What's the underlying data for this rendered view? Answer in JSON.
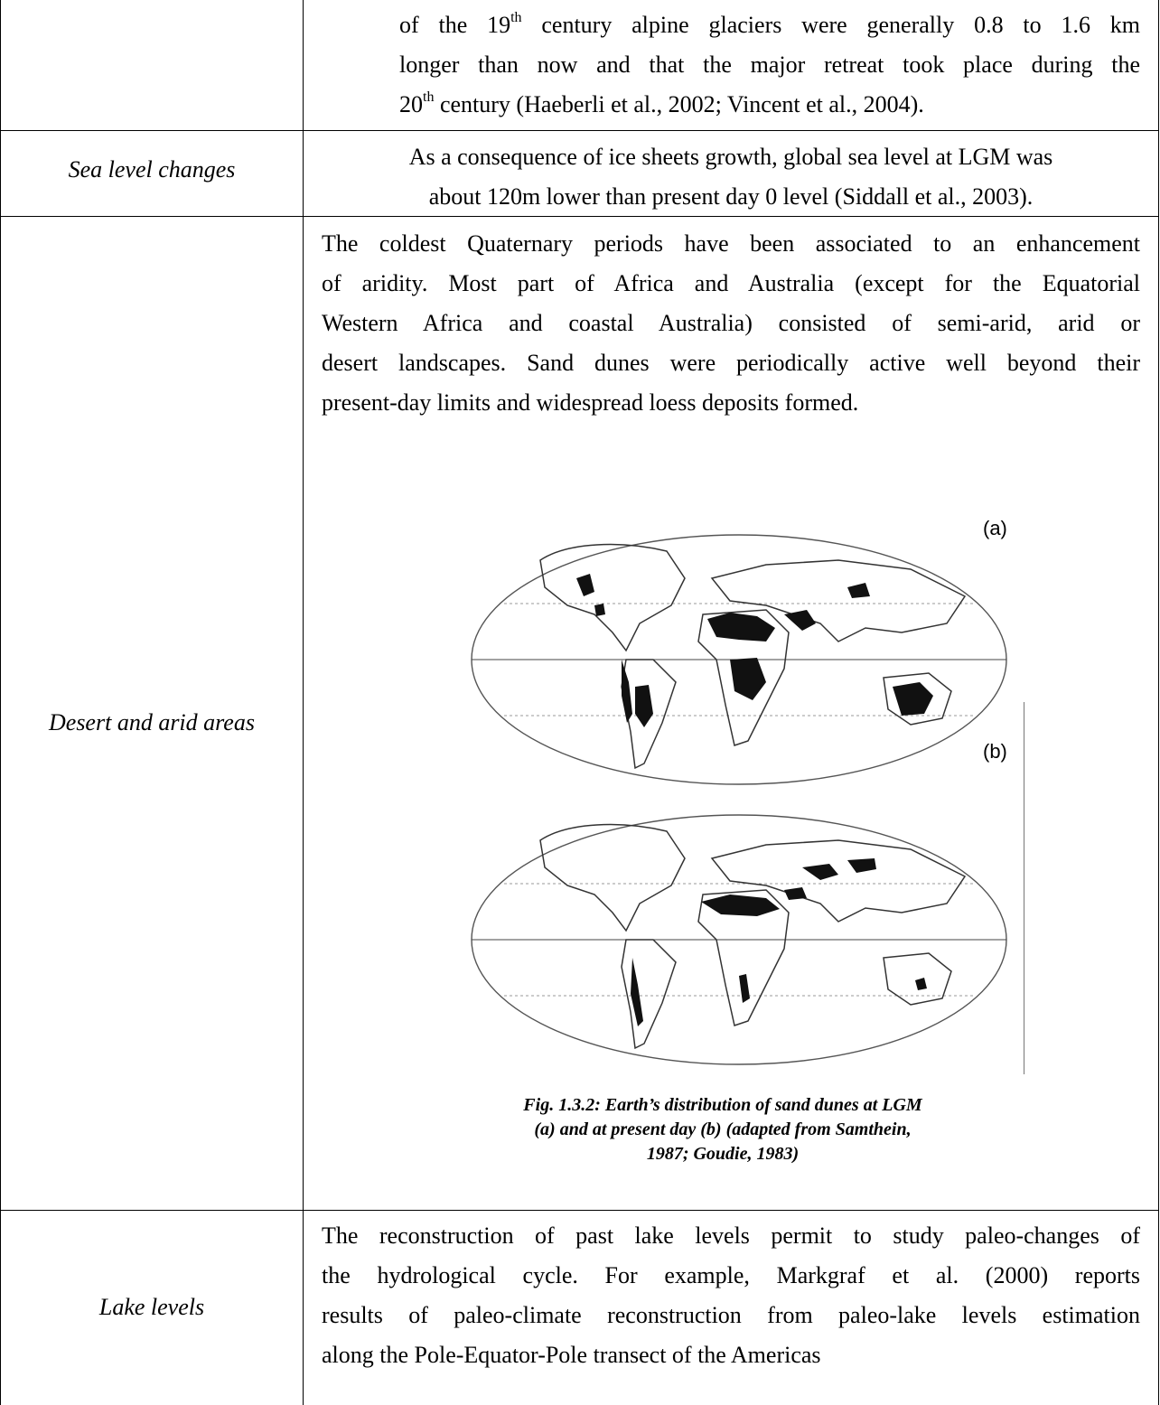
{
  "rows": {
    "glaciers": {
      "line1_pre": "of the 19",
      "line1_sup": "th",
      "line1_post": " century alpine glaciers were generally 0.8 to 1.6 km",
      "line2": "longer than now and that the major retreat took place during the",
      "line3_pre": "20",
      "line3_sup": "th",
      "line3_post": " century (Haeberli et al., 2002; Vincent et al., 2004)."
    },
    "sea_level": {
      "label": "Sea level changes",
      "line1": "As a consequence of ice sheets growth, global sea level at LGM was",
      "line2": "about 120m lower than present day 0 level (Siddall et al., 2003)."
    },
    "desert": {
      "label": "Desert and arid areas",
      "lines": [
        "The coldest Quaternary periods have been associated to an enhancement",
        "of aridity. Most part of Africa and Australia (except for the Equatorial",
        "Western Africa and coastal Australia) consisted of semi-arid, arid or",
        "desert landscapes. Sand dunes were periodically active well beyond their",
        "present-day limits and widespread loess deposits formed."
      ],
      "map_a_label": "(a)",
      "map_b_label": "(b)",
      "caption_bold": "Fig. 1.3.2:",
      "caption_line1": " Earth’s distribution of sand dunes at LGM",
      "caption_line2": "(a) and at present day (b) (adapted from Samthein,",
      "caption_line3": "1987; Goudie, 1983)"
    },
    "lake": {
      "label": "Lake levels",
      "lines": [
        "The reconstruction of past lake levels permit to study paleo-changes of",
        "the hydrological cycle. For example, Markgraf et al. (2000) reports",
        "results of paleo-climate reconstruction from paleo-lake levels estimation",
        "along the Pole-Equator-Pole transect of the Americas"
      ]
    }
  }
}
